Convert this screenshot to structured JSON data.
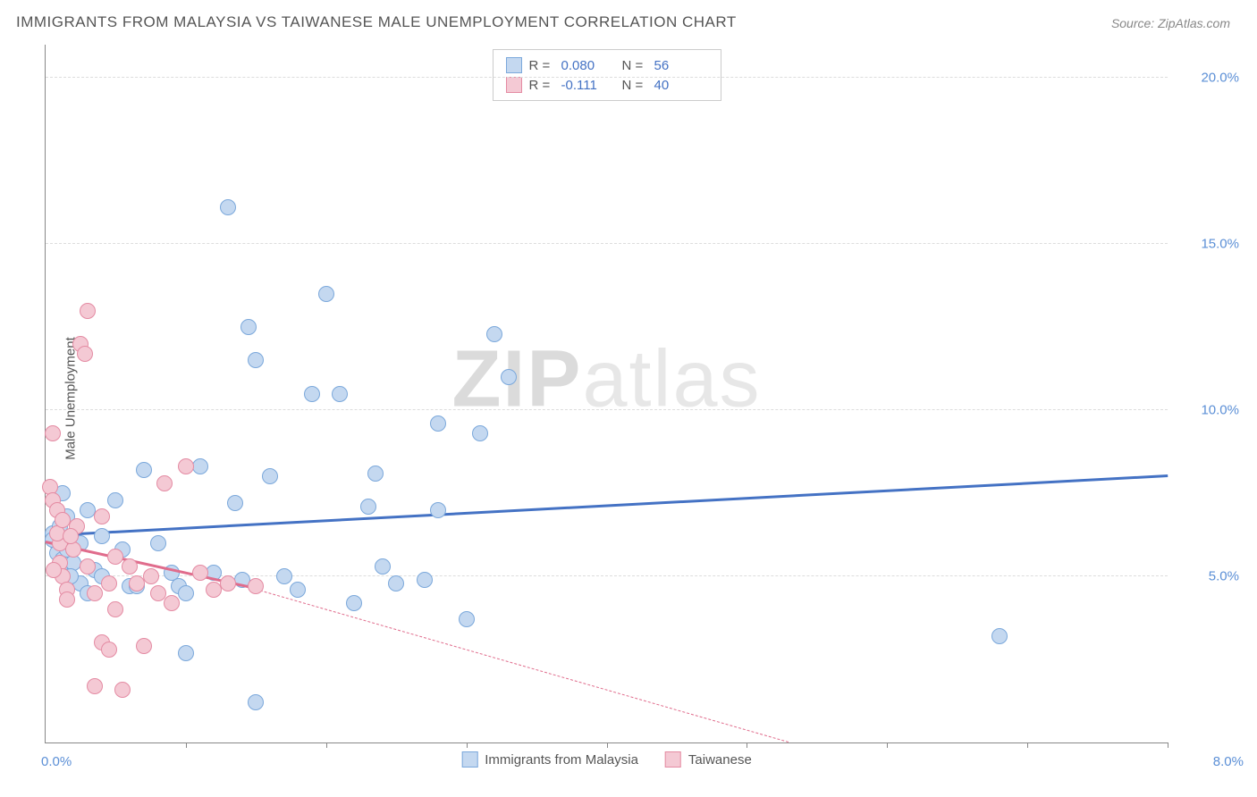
{
  "title": "IMMIGRANTS FROM MALAYSIA VS TAIWANESE MALE UNEMPLOYMENT CORRELATION CHART",
  "source": "Source: ZipAtlas.com",
  "y_axis_label": "Male Unemployment",
  "watermark_bold": "ZIP",
  "watermark_light": "atlas",
  "chart": {
    "type": "scatter",
    "xlim": [
      0,
      8
    ],
    "ylim": [
      0,
      21
    ],
    "x_tick_count": 8,
    "x_min_label": "0.0%",
    "x_max_label": "8.0%",
    "y_ticks": [
      5,
      10,
      15,
      20
    ],
    "y_tick_labels": [
      "5.0%",
      "10.0%",
      "15.0%",
      "20.0%"
    ],
    "grid_color": "#dddddd",
    "axis_color": "#888888",
    "background_color": "#ffffff",
    "point_radius": 9,
    "series": [
      {
        "name": "Immigrants from Malaysia",
        "fill": "#c4d8f0",
        "stroke": "#7ba8db",
        "trend_color": "#4472c4",
        "trend_width": 2.5,
        "r_label": "R =",
        "r_value": "0.080",
        "n_label": "N =",
        "n_value": "56",
        "trend": {
          "x1": 0.0,
          "y1": 6.2,
          "x2": 8.0,
          "y2": 8.0
        },
        "points": [
          [
            0.05,
            6.3
          ],
          [
            0.08,
            6.0
          ],
          [
            0.05,
            6.1
          ],
          [
            0.1,
            6.5
          ],
          [
            0.08,
            5.7
          ],
          [
            0.12,
            5.5
          ],
          [
            0.1,
            5.3
          ],
          [
            0.15,
            5.8
          ],
          [
            0.2,
            5.4
          ],
          [
            0.25,
            4.8
          ],
          [
            0.3,
            4.5
          ],
          [
            0.35,
            5.2
          ],
          [
            0.4,
            6.2
          ],
          [
            0.5,
            7.3
          ],
          [
            0.6,
            4.7
          ],
          [
            0.7,
            8.2
          ],
          [
            0.8,
            6.0
          ],
          [
            0.9,
            5.1
          ],
          [
            0.95,
            4.7
          ],
          [
            1.0,
            2.7
          ],
          [
            1.0,
            4.5
          ],
          [
            1.1,
            8.3
          ],
          [
            1.2,
            5.1
          ],
          [
            1.3,
            16.1
          ],
          [
            1.35,
            7.2
          ],
          [
            1.4,
            4.9
          ],
          [
            1.45,
            12.5
          ],
          [
            1.5,
            1.2
          ],
          [
            1.5,
            11.5
          ],
          [
            1.6,
            8.0
          ],
          [
            1.7,
            5.0
          ],
          [
            1.8,
            4.6
          ],
          [
            1.9,
            10.5
          ],
          [
            2.0,
            13.5
          ],
          [
            2.1,
            10.5
          ],
          [
            2.2,
            4.2
          ],
          [
            2.3,
            7.1
          ],
          [
            2.35,
            8.1
          ],
          [
            2.4,
            5.3
          ],
          [
            2.5,
            4.8
          ],
          [
            2.7,
            4.9
          ],
          [
            2.8,
            9.6
          ],
          [
            2.8,
            7.0
          ],
          [
            3.0,
            3.7
          ],
          [
            3.1,
            9.3
          ],
          [
            3.2,
            12.3
          ],
          [
            3.3,
            11.0
          ],
          [
            6.8,
            3.2
          ],
          [
            0.25,
            6.0
          ],
          [
            0.4,
            5.0
          ],
          [
            0.55,
            5.8
          ],
          [
            0.15,
            6.8
          ],
          [
            0.3,
            7.0
          ],
          [
            0.12,
            7.5
          ],
          [
            0.65,
            4.7
          ],
          [
            0.18,
            5.0
          ]
        ]
      },
      {
        "name": "Taiwanese",
        "fill": "#f4c9d4",
        "stroke": "#e48ba3",
        "trend_color": "#e06c8c",
        "trend_width": 2.5,
        "r_label": "R =",
        "r_value": "-0.111",
        "n_label": "N =",
        "n_value": "40",
        "trend": {
          "x1": 0.0,
          "y1": 6.0,
          "x2": 1.5,
          "y2": 4.6
        },
        "trend_dash": {
          "x1": 1.5,
          "y1": 4.6,
          "x2": 5.3,
          "y2": 0.0
        },
        "points": [
          [
            0.03,
            7.7
          ],
          [
            0.05,
            7.3
          ],
          [
            0.08,
            7.0
          ],
          [
            0.1,
            6.0
          ],
          [
            0.05,
            9.3
          ],
          [
            0.1,
            5.4
          ],
          [
            0.12,
            5.0
          ],
          [
            0.15,
            4.6
          ],
          [
            0.15,
            4.3
          ],
          [
            0.2,
            5.8
          ],
          [
            0.22,
            6.5
          ],
          [
            0.25,
            12.0
          ],
          [
            0.28,
            11.7
          ],
          [
            0.3,
            13.0
          ],
          [
            0.3,
            5.3
          ],
          [
            0.35,
            4.5
          ],
          [
            0.35,
            1.7
          ],
          [
            0.4,
            6.8
          ],
          [
            0.4,
            3.0
          ],
          [
            0.45,
            2.8
          ],
          [
            0.5,
            5.6
          ],
          [
            0.5,
            4.0
          ],
          [
            0.55,
            1.6
          ],
          [
            0.6,
            5.3
          ],
          [
            0.65,
            4.8
          ],
          [
            0.7,
            2.9
          ],
          [
            0.75,
            5.0
          ],
          [
            0.8,
            4.5
          ],
          [
            0.85,
            7.8
          ],
          [
            0.9,
            4.2
          ],
          [
            1.0,
            8.3
          ],
          [
            1.1,
            5.1
          ],
          [
            1.2,
            4.6
          ],
          [
            1.3,
            4.8
          ],
          [
            1.5,
            4.7
          ],
          [
            0.08,
            6.3
          ],
          [
            0.12,
            6.7
          ],
          [
            0.06,
            5.2
          ],
          [
            0.18,
            6.2
          ],
          [
            0.45,
            4.8
          ]
        ]
      }
    ]
  }
}
